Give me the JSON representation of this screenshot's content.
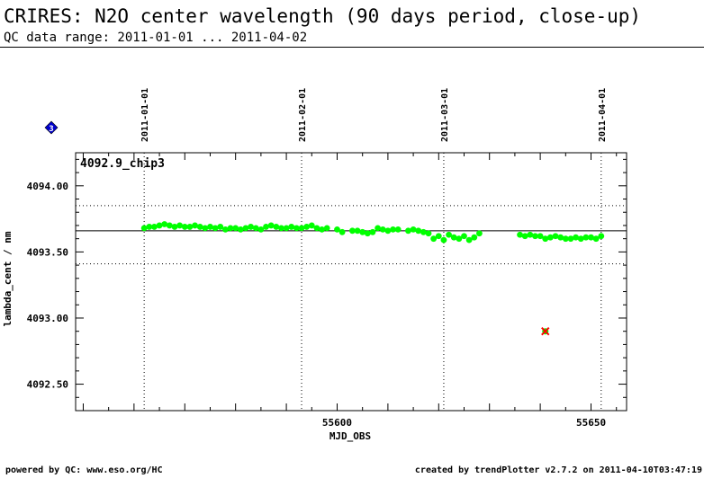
{
  "header": {
    "title": "CRIRES: N2O center wavelength (90 days period, close-up)",
    "subtitle": "QC data range: 2011-01-01 ... 2011-04-02"
  },
  "footer": {
    "left": "powered by QC: www.eso.org/HC",
    "right": "created by trendPlotter v2.7.2 on 2011-04-10T03:47:19"
  },
  "badge": {
    "label": "3",
    "color": "#0000cc"
  },
  "chart_data": {
    "type": "scatter",
    "panel_label": "4092.9_chip3",
    "xlabel": "MJD_OBS",
    "ylabel": "lambda_cent / nm",
    "xlim": [
      55548.5,
      55657
    ],
    "ylim": [
      4092.3,
      4094.25
    ],
    "x_ticks": [
      55600,
      55650
    ],
    "x_tick_labels": [
      "55600",
      "55650"
    ],
    "y_ticks": [
      4092.5,
      4093.0,
      4093.5,
      4094.0
    ],
    "y_tick_labels": [
      "4092.50",
      "4093.00",
      "4093.50",
      "4094.00"
    ],
    "date_markers": [
      {
        "label": "2011-01-01",
        "mjd": 55562
      },
      {
        "label": "2011-02-01",
        "mjd": 55593
      },
      {
        "label": "2011-03-01",
        "mjd": 55621
      },
      {
        "label": "2011-04-01",
        "mjd": 55652
      }
    ],
    "reference_line": 4093.66,
    "threshold_lines": [
      4093.85,
      4093.41
    ],
    "point_color": "#00ff00",
    "outlier_color": "#ff0000",
    "series": [
      {
        "points": [
          [
            55562,
            4093.68
          ],
          [
            55563,
            4093.69
          ],
          [
            55564,
            4093.69
          ],
          [
            55565,
            4093.7
          ],
          [
            55566,
            4093.71
          ],
          [
            55567,
            4093.7
          ],
          [
            55568,
            4093.69
          ],
          [
            55569,
            4093.7
          ],
          [
            55570,
            4093.69
          ],
          [
            55571,
            4093.69
          ],
          [
            55572,
            4093.7
          ],
          [
            55573,
            4093.69
          ],
          [
            55574,
            4093.68
          ],
          [
            55575,
            4093.69
          ],
          [
            55576,
            4093.68
          ],
          [
            55577,
            4093.69
          ],
          [
            55578,
            4093.67
          ],
          [
            55579,
            4093.68
          ],
          [
            55580,
            4093.68
          ],
          [
            55581,
            4093.67
          ],
          [
            55582,
            4093.68
          ],
          [
            55583,
            4093.69
          ],
          [
            55584,
            4093.68
          ],
          [
            55585,
            4093.67
          ],
          [
            55586,
            4093.69
          ],
          [
            55587,
            4093.7
          ],
          [
            55588,
            4093.69
          ],
          [
            55589,
            4093.68
          ],
          [
            55590,
            4093.68
          ],
          [
            55591,
            4093.69
          ],
          [
            55592,
            4093.68
          ],
          [
            55593,
            4093.68
          ],
          [
            55594,
            4093.69
          ],
          [
            55595,
            4093.7
          ],
          [
            55596,
            4093.68
          ],
          [
            55597,
            4093.67
          ],
          [
            55598,
            4093.68
          ],
          [
            55600,
            4093.67
          ],
          [
            55601,
            4093.65
          ],
          [
            55603,
            4093.66
          ],
          [
            55604,
            4093.66
          ],
          [
            55605,
            4093.65
          ],
          [
            55606,
            4093.64
          ],
          [
            55607,
            4093.65
          ],
          [
            55608,
            4093.68
          ],
          [
            55609,
            4093.67
          ],
          [
            55610,
            4093.66
          ],
          [
            55611,
            4093.67
          ],
          [
            55612,
            4093.67
          ],
          [
            55614,
            4093.66
          ],
          [
            55615,
            4093.67
          ],
          [
            55616,
            4093.66
          ],
          [
            55617,
            4093.65
          ],
          [
            55618,
            4093.64
          ],
          [
            55619,
            4093.6
          ],
          [
            55620,
            4093.62
          ],
          [
            55621,
            4093.59
          ],
          [
            55622,
            4093.63
          ],
          [
            55623,
            4093.61
          ],
          [
            55624,
            4093.6
          ],
          [
            55625,
            4093.62
          ],
          [
            55626,
            4093.59
          ],
          [
            55627,
            4093.61
          ],
          [
            55628,
            4093.64
          ],
          [
            55636,
            4093.63
          ],
          [
            55637,
            4093.62
          ],
          [
            55638,
            4093.63
          ],
          [
            55639,
            4093.62
          ],
          [
            55640,
            4093.62
          ],
          [
            55641,
            4093.6
          ],
          [
            55642,
            4093.61
          ],
          [
            55643,
            4093.62
          ],
          [
            55644,
            4093.61
          ],
          [
            55645,
            4093.6
          ],
          [
            55646,
            4093.6
          ],
          [
            55647,
            4093.61
          ],
          [
            55648,
            4093.6
          ],
          [
            55649,
            4093.61
          ],
          [
            55650,
            4093.61
          ],
          [
            55651,
            4093.6
          ],
          [
            55652,
            4093.62
          ]
        ]
      },
      {
        "role": "outlier",
        "points": [
          [
            55641,
            4092.9
          ]
        ]
      }
    ]
  }
}
